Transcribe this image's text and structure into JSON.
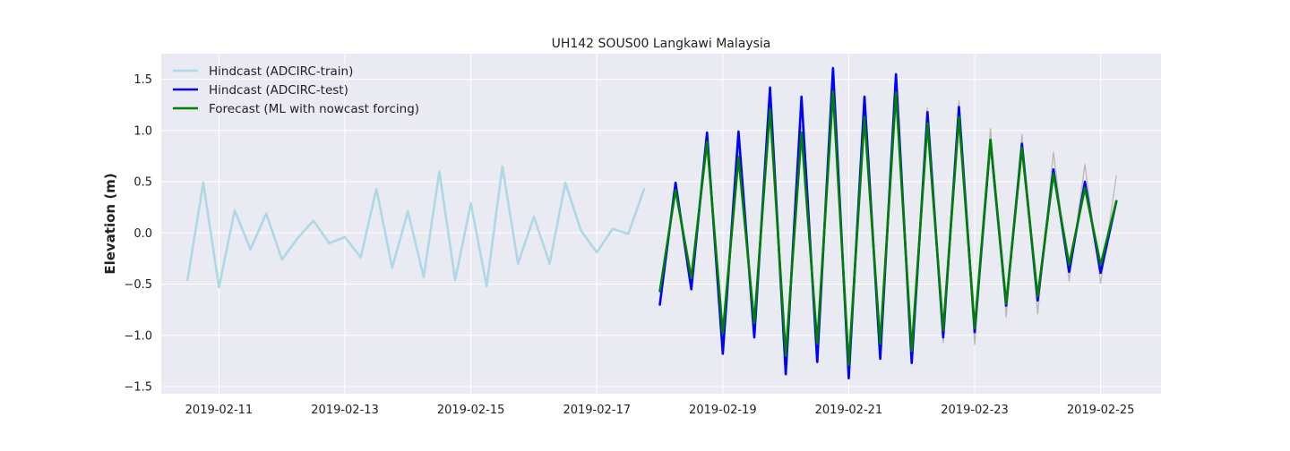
{
  "chart_data": {
    "type": "line",
    "title": "UH142 SOUS00 Langkawi Malaysia",
    "xlabel": "",
    "ylabel": "Elevation (m)",
    "x_ticks": [
      "2019-02-11",
      "2019-02-13",
      "2019-02-15",
      "2019-02-17",
      "2019-02-19",
      "2019-02-21",
      "2019-02-23",
      "2019-02-25"
    ],
    "y_ticks": [
      "−1.5",
      "−1.0",
      "−0.5",
      "0.0",
      "0.5",
      "1.0",
      "1.5"
    ],
    "y_tick_values": [
      -1.5,
      -1.0,
      -0.5,
      0.0,
      0.5,
      1.0,
      1.5
    ],
    "xlim": [
      "2019-02-10 02:00",
      "2019-02-25 23:00"
    ],
    "ylim": [
      -1.57,
      1.75
    ],
    "grid": true,
    "legend_position": "top-left",
    "colors": {
      "background": "#eaeaf2",
      "grid": "#ffffff",
      "train": "#add8e6",
      "test": "#0000ff",
      "forecast": "#008000",
      "observed": "#b8b8b8"
    },
    "x_time_step_hours": 6,
    "series": [
      {
        "name": "Hindcast (ADCIRC-train)",
        "start": "2019-02-10 12:00",
        "values": [
          -0.46,
          0.49,
          -0.53,
          0.22,
          -0.16,
          0.19,
          -0.26,
          -0.05,
          0.12,
          -0.1,
          -0.04,
          -0.24,
          0.43,
          -0.34,
          0.21,
          -0.43,
          0.6,
          -0.46,
          0.29,
          -0.52,
          0.65,
          -0.3,
          0.16,
          -0.3,
          0.49,
          0.02,
          -0.19,
          0.04,
          -0.01,
          0.43
        ]
      },
      {
        "name": "Hindcast (ADCIRC-test)",
        "start": "2019-02-18 00:00",
        "values": [
          -0.7,
          0.49,
          -0.55,
          0.98,
          -1.18,
          0.99,
          -1.02,
          1.42,
          -1.38,
          1.33,
          -1.26,
          1.61,
          -1.42,
          1.33,
          -1.23,
          1.55,
          -1.27,
          1.18,
          -1.02,
          1.23,
          -0.97,
          0.9,
          -0.71,
          0.87,
          -0.66,
          0.62,
          -0.38,
          0.5,
          -0.39,
          0.31
        ]
      },
      {
        "name": "Forecast (ML with nowcast forcing)",
        "start": "2019-02-18 00:00",
        "values": [
          -0.57,
          0.42,
          -0.44,
          0.89,
          -0.98,
          0.74,
          -0.88,
          1.21,
          -1.2,
          0.98,
          -1.08,
          1.38,
          -1.29,
          1.13,
          -1.08,
          1.37,
          -1.15,
          1.07,
          -0.95,
          1.13,
          -0.93,
          0.91,
          -0.69,
          0.83,
          -0.62,
          0.58,
          -0.31,
          0.44,
          -0.31,
          0.31
        ]
      },
      {
        "start": "2019-02-18 00:00",
        "values": [
          -0.55,
          0.45,
          -0.48,
          0.9,
          -1.05,
          0.8,
          -0.9,
          1.25,
          -1.25,
          1.05,
          -1.12,
          1.4,
          -1.3,
          1.2,
          -1.12,
          1.42,
          -1.2,
          1.22,
          -1.07,
          1.29,
          -1.09,
          1.02,
          -0.82,
          0.96,
          -0.79,
          0.79,
          -0.47,
          0.67,
          -0.49,
          0.56
        ]
      }
    ]
  }
}
